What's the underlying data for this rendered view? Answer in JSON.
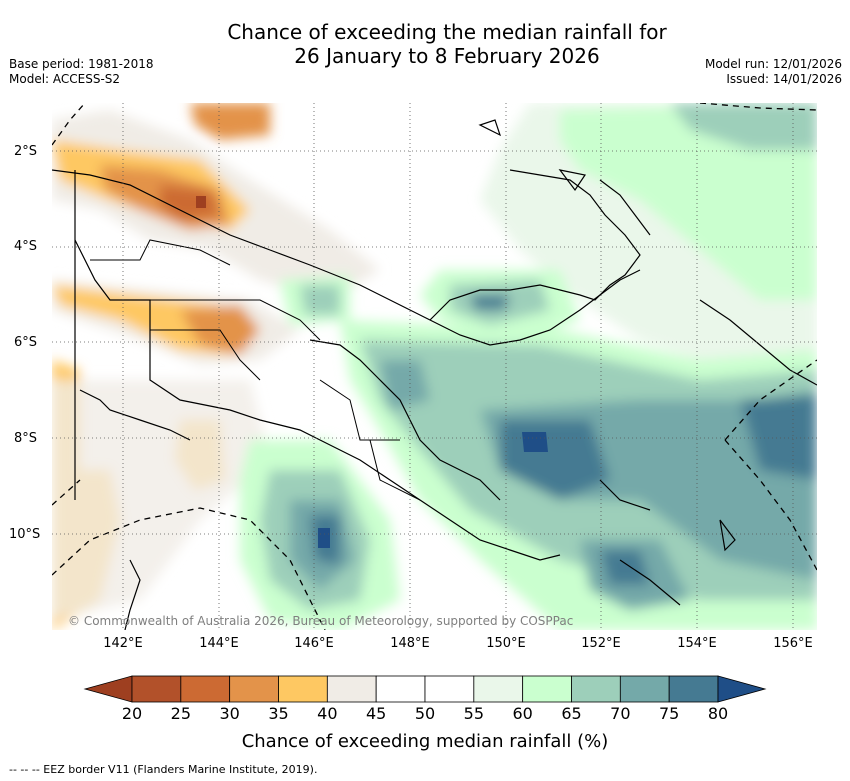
{
  "title_line1": "Chance of exceeding the median rainfall for",
  "title_line2": "26 January to 8 February 2026",
  "base_period": "Base period: 1981-2018",
  "model": "Model: ACCESS-S2",
  "model_run": "Model run: 12/01/2026",
  "issued": "Issued: 14/01/2026",
  "lat_labels": [
    "2°S",
    "4°S",
    "6°S",
    "8°S",
    "10°S"
  ],
  "lon_labels": [
    "142°E",
    "144°E",
    "146°E",
    "148°E",
    "150°E",
    "152°E",
    "154°E",
    "156°E"
  ],
  "copyright": "© Commonwealth of Australia 2026, Bureau of Meteorology, supported by COSPPac",
  "legend": {
    "ticks": [
      "20",
      "25",
      "30",
      "35",
      "40",
      "45",
      "50",
      "55",
      "60",
      "65",
      "70",
      "75",
      "80"
    ],
    "label": "Chance of exceeding median rainfall (%)",
    "colors": [
      "#b2512a",
      "#cc6a33",
      "#e3934a",
      "#fec862",
      "#f0ece6",
      "#ffffff",
      "#ffffff",
      "#eaf7ea",
      "#caffcf",
      "#9dcfba",
      "#74a9a9",
      "#457a92"
    ],
    "under_color": "#9e3f20",
    "over_color": "#1f4e87"
  },
  "footnote": "-- -- -- EEZ border V11 (Flanders Marine Institute, 2019)."
}
